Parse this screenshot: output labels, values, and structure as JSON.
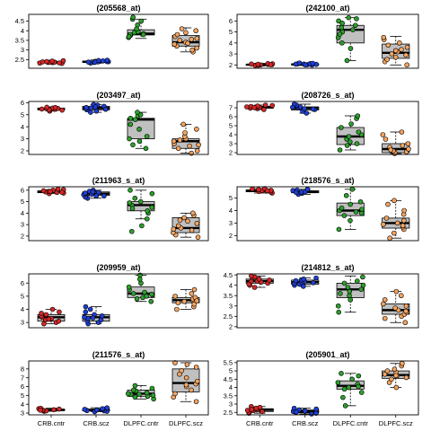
{
  "figure": {
    "groups": [
      "CRB.cntr",
      "CRB.scz",
      "DLPFC.cntr",
      "DLPFC.scz"
    ],
    "group_colors": {
      "CRB.cntr": "#d62728",
      "CRB.scz": "#1f3fd6",
      "DLPFC.cntr": "#2ca02c",
      "DLPFC.scz": "#f4a460"
    },
    "box_fill": "#c0c0c0"
  },
  "chart_data": [
    {
      "type": "box",
      "title": "(205568_at)",
      "ylim": [
        2.05,
        4.85
      ],
      "yticks": [
        2.5,
        3.0,
        3.5,
        4.0,
        4.5
      ],
      "boxes": [
        {
          "group": "CRB.cntr",
          "whislo": 2.28,
          "q1": 2.33,
          "med": 2.36,
          "q3": 2.39,
          "whishi": 2.45,
          "points": [
            2.3,
            2.32,
            2.34,
            2.35,
            2.36,
            2.37,
            2.38,
            2.4,
            2.42,
            2.44,
            2.33
          ]
        },
        {
          "group": "CRB.scz",
          "whislo": 2.3,
          "q1": 2.35,
          "med": 2.39,
          "q3": 2.42,
          "whishi": 2.48,
          "points": [
            2.32,
            2.35,
            2.37,
            2.38,
            2.39,
            2.4,
            2.41,
            2.43,
            2.45,
            2.47,
            2.36
          ]
        },
        {
          "group": "DLPFC.cntr",
          "whislo": 3.6,
          "q1": 3.78,
          "med": 3.85,
          "q3": 4.05,
          "whishi": 4.6,
          "points": [
            3.65,
            3.75,
            3.8,
            3.85,
            3.9,
            3.95,
            4.1,
            4.3,
            4.5,
            4.6,
            3.7,
            4.7,
            3.8
          ]
        },
        {
          "group": "DLPFC.scz",
          "whislo": 2.9,
          "q1": 3.2,
          "med": 3.4,
          "q3": 3.75,
          "whishi": 4.15,
          "points": [
            2.9,
            3.0,
            3.1,
            3.2,
            3.3,
            3.4,
            3.5,
            3.6,
            3.7,
            3.8,
            3.9,
            4.0,
            4.1,
            3.35,
            3.55
          ]
        }
      ]
    },
    {
      "type": "box",
      "title": "(242100_at)",
      "ylim": [
        1.7,
        6.6
      ],
      "yticks": [
        2,
        3,
        4,
        5,
        6
      ],
      "boxes": [
        {
          "group": "CRB.cntr",
          "whislo": 1.9,
          "q1": 1.98,
          "med": 2.02,
          "q3": 2.07,
          "whishi": 2.15,
          "points": [
            1.95,
            2.0,
            2.03,
            2.05,
            2.08,
            2.1,
            2.12,
            1.97,
            2.02,
            2.06
          ]
        },
        {
          "group": "CRB.scz",
          "whislo": 1.95,
          "q1": 2.0,
          "med": 2.05,
          "q3": 2.1,
          "whishi": 2.2,
          "points": [
            1.98,
            2.02,
            2.05,
            2.08,
            2.1,
            2.12,
            2.15,
            2.18,
            2.0,
            2.07
          ]
        },
        {
          "group": "DLPFC.cntr",
          "whislo": 2.4,
          "q1": 4.0,
          "med": 5.2,
          "q3": 5.6,
          "whishi": 6.3,
          "points": [
            2.4,
            3.5,
            4.0,
            4.5,
            5.0,
            5.2,
            5.4,
            5.6,
            5.8,
            6.0,
            6.2,
            6.3,
            4.8
          ]
        },
        {
          "group": "DLPFC.scz",
          "whislo": 2.0,
          "q1": 2.6,
          "med": 3.1,
          "q3": 3.9,
          "whishi": 4.6,
          "points": [
            2.0,
            2.3,
            2.5,
            2.7,
            2.9,
            3.0,
            3.2,
            3.4,
            3.6,
            3.8,
            4.0,
            4.3,
            4.5,
            3.3
          ]
        }
      ]
    },
    {
      "type": "box",
      "title": "(203497_at)",
      "ylim": [
        1.7,
        6.1
      ],
      "yticks": [
        2,
        3,
        4,
        5,
        6
      ],
      "boxes": [
        {
          "group": "CRB.cntr",
          "whislo": 5.3,
          "q1": 5.4,
          "med": 5.48,
          "q3": 5.55,
          "whishi": 5.65,
          "points": [
            5.3,
            5.38,
            5.42,
            5.45,
            5.5,
            5.52,
            5.55,
            5.6,
            5.4,
            5.47,
            5.62
          ]
        },
        {
          "group": "CRB.scz",
          "whislo": 5.2,
          "q1": 5.4,
          "med": 5.55,
          "q3": 5.7,
          "whishi": 5.85,
          "points": [
            5.2,
            5.3,
            5.4,
            5.5,
            5.55,
            5.6,
            5.7,
            5.8,
            5.85,
            5.45,
            5.65
          ]
        },
        {
          "group": "DLPFC.cntr",
          "whislo": 2.2,
          "q1": 3.0,
          "med": 4.6,
          "q3": 4.7,
          "whishi": 5.2,
          "points": [
            2.2,
            2.5,
            3.0,
            3.2,
            3.8,
            4.2,
            4.6,
            4.7,
            4.9,
            5.0,
            5.2,
            2.8
          ]
        },
        {
          "group": "DLPFC.scz",
          "whislo": 1.8,
          "q1": 2.2,
          "med": 2.8,
          "q3": 3.0,
          "whishi": 4.2,
          "points": [
            1.8,
            2.0,
            2.2,
            2.4,
            2.6,
            2.8,
            3.0,
            3.2,
            3.5,
            3.8,
            4.2,
            2.5,
            2.9
          ]
        }
      ]
    },
    {
      "type": "box",
      "title": "(208726_s_at)",
      "ylim": [
        1.8,
        7.7
      ],
      "yticks": [
        2,
        3,
        4,
        5,
        6,
        7
      ],
      "boxes": [
        {
          "group": "CRB.cntr",
          "whislo": 6.8,
          "q1": 6.95,
          "med": 7.05,
          "q3": 7.15,
          "whishi": 7.3,
          "points": [
            6.8,
            6.9,
            6.95,
            7.0,
            7.05,
            7.1,
            7.15,
            7.2,
            7.25,
            7.3,
            7.02
          ]
        },
        {
          "group": "CRB.scz",
          "whislo": 6.4,
          "q1": 6.75,
          "med": 6.95,
          "q3": 7.1,
          "whishi": 7.4,
          "points": [
            6.4,
            6.6,
            6.8,
            6.9,
            7.0,
            7.1,
            7.2,
            7.3,
            7.4,
            6.85,
            7.05
          ]
        },
        {
          "group": "DLPFC.cntr",
          "whislo": 2.3,
          "q1": 2.9,
          "med": 3.8,
          "q3": 4.8,
          "whishi": 6.1,
          "points": [
            2.3,
            2.8,
            3.2,
            3.5,
            3.8,
            4.0,
            4.3,
            4.8,
            5.2,
            5.8,
            6.1,
            3.0
          ]
        },
        {
          "group": "DLPFC.scz",
          "whislo": 1.9,
          "q1": 2.0,
          "med": 2.4,
          "q3": 3.0,
          "whishi": 4.3,
          "points": [
            1.9,
            2.0,
            2.1,
            2.2,
            2.4,
            2.6,
            2.8,
            3.0,
            3.5,
            4.0,
            4.3,
            2.3
          ]
        }
      ]
    },
    {
      "type": "box",
      "title": "(211963_s_at)",
      "ylim": [
        1.6,
        6.3
      ],
      "yticks": [
        2,
        3,
        4,
        5,
        6
      ],
      "boxes": [
        {
          "group": "CRB.cntr",
          "whislo": 5.7,
          "q1": 5.78,
          "med": 5.85,
          "q3": 5.95,
          "whishi": 6.05,
          "points": [
            5.7,
            5.75,
            5.8,
            5.85,
            5.9,
            5.95,
            6.0,
            6.05,
            5.82,
            5.88,
            6.1
          ]
        },
        {
          "group": "CRB.scz",
          "whislo": 5.3,
          "q1": 5.55,
          "med": 5.7,
          "q3": 5.85,
          "whishi": 6.0,
          "points": [
            5.3,
            5.4,
            5.5,
            5.6,
            5.7,
            5.75,
            5.8,
            5.9,
            6.0,
            5.65,
            5.85,
            5.5
          ]
        },
        {
          "group": "DLPFC.cntr",
          "whislo": 3.5,
          "q1": 4.2,
          "med": 4.7,
          "q3": 5.0,
          "whishi": 6.0,
          "points": [
            2.4,
            2.9,
            3.5,
            4.0,
            4.2,
            4.5,
            4.7,
            4.9,
            5.0,
            5.3,
            5.7,
            6.0,
            4.4
          ]
        },
        {
          "group": "DLPFC.scz",
          "whislo": 1.9,
          "q1": 2.3,
          "med": 2.7,
          "q3": 3.6,
          "whishi": 4.0,
          "points": [
            1.9,
            2.1,
            2.3,
            2.5,
            2.7,
            2.9,
            3.1,
            3.4,
            3.6,
            3.8,
            4.0,
            2.6,
            3.3
          ]
        }
      ]
    },
    {
      "type": "box",
      "title": "(218576_s_at)",
      "ylim": [
        1.6,
        5.9
      ],
      "yticks": [
        2,
        3,
        4,
        5
      ],
      "boxes": [
        {
          "group": "CRB.cntr",
          "whislo": 5.4,
          "q1": 5.5,
          "med": 5.58,
          "q3": 5.65,
          "whishi": 5.75,
          "points": [
            5.4,
            5.48,
            5.52,
            5.55,
            5.6,
            5.62,
            5.68,
            5.72,
            5.75,
            5.58
          ]
        },
        {
          "group": "CRB.scz",
          "whislo": 5.3,
          "q1": 5.42,
          "med": 5.5,
          "q3": 5.58,
          "whishi": 5.7,
          "points": [
            5.3,
            5.38,
            5.42,
            5.48,
            5.5,
            5.55,
            5.6,
            5.65,
            5.7,
            5.45
          ]
        },
        {
          "group": "DLPFC.cntr",
          "whislo": 2.5,
          "q1": 3.6,
          "med": 4.0,
          "q3": 4.6,
          "whishi": 5.7,
          "points": [
            2.5,
            3.2,
            3.6,
            3.8,
            4.0,
            4.2,
            4.5,
            4.7,
            5.2,
            5.7,
            3.9,
            4.1
          ]
        },
        {
          "group": "DLPFC.scz",
          "whislo": 1.8,
          "q1": 2.6,
          "med": 3.0,
          "q3": 3.4,
          "whishi": 4.8,
          "points": [
            1.8,
            2.2,
            2.5,
            2.7,
            2.9,
            3.0,
            3.2,
            3.4,
            3.7,
            4.0,
            4.5,
            4.8,
            2.8
          ]
        }
      ]
    },
    {
      "type": "box",
      "title": "(209959_at)",
      "ylim": [
        2.6,
        6.7
      ],
      "yticks": [
        3,
        4,
        5,
        6
      ],
      "boxes": [
        {
          "group": "CRB.cntr",
          "whislo": 2.9,
          "q1": 3.1,
          "med": 3.4,
          "q3": 3.6,
          "whishi": 4.0,
          "points": [
            2.9,
            3.0,
            3.1,
            3.2,
            3.3,
            3.4,
            3.5,
            3.6,
            3.7,
            3.8,
            4.0,
            3.25
          ]
        },
        {
          "group": "CRB.scz",
          "whislo": 2.9,
          "q1": 3.1,
          "med": 3.4,
          "q3": 3.6,
          "whishi": 4.2,
          "points": [
            2.9,
            3.0,
            3.1,
            3.2,
            3.3,
            3.4,
            3.5,
            3.6,
            3.8,
            4.0,
            4.2,
            3.35
          ]
        },
        {
          "group": "DLPFC.cntr",
          "whislo": 4.6,
          "q1": 4.9,
          "med": 5.2,
          "q3": 5.7,
          "whishi": 6.6,
          "points": [
            4.6,
            4.8,
            4.9,
            5.0,
            5.1,
            5.2,
            5.3,
            5.5,
            5.7,
            6.0,
            6.3,
            6.6,
            5.15
          ]
        },
        {
          "group": "DLPFC.scz",
          "whislo": 4.0,
          "q1": 4.5,
          "med": 4.7,
          "q3": 4.9,
          "whishi": 5.5,
          "points": [
            4.0,
            4.2,
            4.4,
            4.5,
            4.6,
            4.7,
            4.8,
            4.9,
            5.0,
            5.2,
            5.5,
            4.65
          ]
        }
      ]
    },
    {
      "type": "box",
      "title": "(214812_s_at)",
      "ylim": [
        1.95,
        4.55
      ],
      "yticks": [
        2.0,
        2.5,
        3.0,
        3.5,
        4.0,
        4.5
      ],
      "boxes": [
        {
          "group": "CRB.cntr",
          "whislo": 3.9,
          "q1": 4.1,
          "med": 4.2,
          "q3": 4.3,
          "whishi": 4.45,
          "points": [
            3.9,
            4.0,
            4.1,
            4.15,
            4.2,
            4.25,
            4.3,
            4.35,
            4.4,
            4.45,
            4.18,
            4.05
          ]
        },
        {
          "group": "CRB.scz",
          "whislo": 3.95,
          "q1": 4.05,
          "med": 4.15,
          "q3": 4.25,
          "whishi": 4.35,
          "points": [
            3.95,
            4.0,
            4.05,
            4.1,
            4.15,
            4.2,
            4.25,
            4.3,
            4.35,
            4.12,
            4.22
          ]
        },
        {
          "group": "DLPFC.cntr",
          "whislo": 2.7,
          "q1": 3.4,
          "med": 3.8,
          "q3": 4.1,
          "whishi": 4.45,
          "points": [
            2.7,
            3.0,
            3.3,
            3.5,
            3.7,
            3.8,
            3.9,
            4.0,
            4.1,
            4.2,
            4.4,
            3.6
          ]
        },
        {
          "group": "DLPFC.scz",
          "whislo": 2.2,
          "q1": 2.6,
          "med": 2.8,
          "q3": 3.1,
          "whishi": 3.7,
          "points": [
            2.2,
            2.4,
            2.5,
            2.6,
            2.7,
            2.8,
            2.9,
            3.0,
            3.1,
            3.3,
            3.5,
            3.7,
            2.75
          ]
        }
      ]
    },
    {
      "type": "box",
      "title": "(211576_s_at)",
      "ylim": [
        2.8,
        8.9
      ],
      "yticks": [
        3,
        4,
        5,
        6,
        7,
        8
      ],
      "boxes": [
        {
          "group": "CRB.cntr",
          "whislo": 3.2,
          "q1": 3.28,
          "med": 3.35,
          "q3": 3.45,
          "whishi": 3.55,
          "points": [
            3.2,
            3.25,
            3.3,
            3.35,
            3.4,
            3.45,
            3.5,
            3.55,
            3.32,
            3.38
          ]
        },
        {
          "group": "CRB.scz",
          "whislo": 3.15,
          "q1": 3.25,
          "med": 3.35,
          "q3": 3.45,
          "whishi": 3.6,
          "points": [
            3.15,
            3.2,
            3.25,
            3.3,
            3.35,
            3.4,
            3.45,
            3.5,
            3.6,
            3.28,
            3.42
          ]
        },
        {
          "group": "DLPFC.cntr",
          "whislo": 4.6,
          "q1": 4.9,
          "med": 5.2,
          "q3": 5.6,
          "whishi": 6.1,
          "points": [
            4.6,
            4.8,
            4.9,
            5.0,
            5.1,
            5.2,
            5.3,
            5.5,
            5.6,
            5.8,
            6.1,
            5.15
          ]
        },
        {
          "group": "DLPFC.scz",
          "whislo": 4.3,
          "q1": 5.4,
          "med": 6.4,
          "q3": 8.0,
          "whishi": 8.7,
          "points": [
            4.3,
            4.8,
            5.2,
            5.6,
            6.0,
            6.3,
            6.6,
            7.0,
            7.4,
            7.8,
            8.2,
            8.5,
            8.7,
            6.2
          ]
        }
      ]
    },
    {
      "type": "box",
      "title": "(205901_at)",
      "ylim": [
        2.35,
        5.6
      ],
      "yticks": [
        2.5,
        3.0,
        3.5,
        4.0,
        4.5,
        5.0,
        5.5
      ],
      "boxes": [
        {
          "group": "CRB.cntr",
          "whislo": 2.45,
          "q1": 2.55,
          "med": 2.65,
          "q3": 2.72,
          "whishi": 2.85,
          "points": [
            2.45,
            2.5,
            2.55,
            2.6,
            2.65,
            2.7,
            2.75,
            2.8,
            2.85,
            2.62,
            2.68
          ]
        },
        {
          "group": "CRB.scz",
          "whislo": 2.4,
          "q1": 2.47,
          "med": 2.55,
          "q3": 2.65,
          "whishi": 2.75,
          "points": [
            2.4,
            2.45,
            2.5,
            2.55,
            2.6,
            2.65,
            2.7,
            2.75,
            2.52,
            2.58
          ]
        },
        {
          "group": "DLPFC.cntr",
          "whislo": 2.9,
          "q1": 3.9,
          "med": 4.1,
          "q3": 4.4,
          "whishi": 4.85,
          "points": [
            2.9,
            3.4,
            3.7,
            3.9,
            4.0,
            4.1,
            4.2,
            4.3,
            4.5,
            4.7,
            4.85,
            4.05
          ]
        },
        {
          "group": "DLPFC.scz",
          "whislo": 4.0,
          "q1": 4.55,
          "med": 4.75,
          "q3": 5.0,
          "whishi": 5.45,
          "points": [
            4.0,
            4.3,
            4.5,
            4.6,
            4.7,
            4.8,
            4.9,
            5.0,
            5.1,
            5.3,
            5.45,
            4.72
          ]
        }
      ]
    }
  ]
}
